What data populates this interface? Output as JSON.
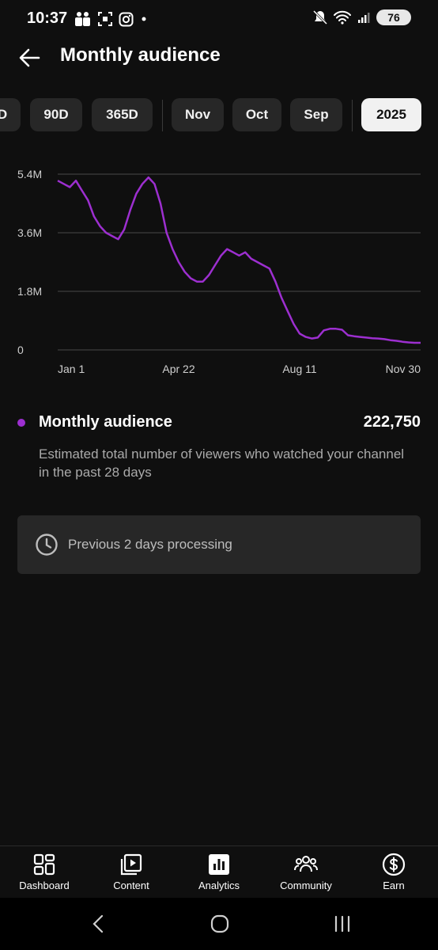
{
  "status_bar": {
    "time": "10:37",
    "left_icons": [
      "teams-icon",
      "screenshot-icon",
      "instagram-icon",
      "dot-icon"
    ],
    "right_icons": [
      "mute-icon",
      "wifi-icon",
      "signal-icon"
    ],
    "battery": "76"
  },
  "header": {
    "title": "Monthly audience",
    "back_icon": "arrow-left-icon"
  },
  "periods": {
    "items": [
      {
        "label": "D"
      },
      {
        "label": "90D"
      },
      {
        "label": "365D"
      },
      {
        "label": "Nov"
      },
      {
        "label": "Oct"
      },
      {
        "label": "Sep"
      },
      {
        "label": "2025"
      }
    ],
    "selected": "2025"
  },
  "chart_data": {
    "type": "line",
    "title": "",
    "xlabel": "",
    "ylabel": "",
    "x_tick_labels": [
      "Jan 1",
      "Apr 22",
      "Aug 11",
      "Nov 30"
    ],
    "y_tick_labels": [
      "5.4M",
      "3.6M",
      "1.8M",
      "0"
    ],
    "ylim": [
      0,
      5.4
    ],
    "y_unit": "M",
    "grid": "horizontal",
    "color": "#9d2fd0",
    "series": [
      {
        "values": [
          5.2,
          5.1,
          5.0,
          5.2,
          4.9,
          4.6,
          4.1,
          3.8,
          3.6,
          3.5,
          3.4,
          3.7,
          4.3,
          4.8,
          5.1,
          5.3,
          5.1,
          4.5,
          3.6,
          3.1,
          2.7,
          2.4,
          2.2,
          2.1,
          2.1,
          2.3,
          2.6,
          2.9,
          3.1,
          3.0,
          2.9,
          3.0,
          2.8,
          2.7,
          2.6,
          2.5,
          2.1,
          1.6,
          1.2,
          0.8,
          0.5,
          0.4,
          0.35,
          0.38,
          0.6,
          0.65,
          0.65,
          0.62,
          0.45,
          0.42,
          0.4,
          0.38,
          0.36,
          0.35,
          0.33,
          0.3,
          0.28,
          0.25,
          0.23,
          0.22,
          0.22
        ]
      }
    ]
  },
  "metric": {
    "name": "Monthly audience",
    "value": "222,750",
    "description": "Estimated total number of viewers who watched your channel in the past 28 days",
    "color": "#9d2fd0"
  },
  "notice": {
    "icon": "clock-icon",
    "text": "Previous 2 days processing"
  },
  "bottom_nav": {
    "items": [
      {
        "label": "Dashboard",
        "icon": "dashboard-icon"
      },
      {
        "label": "Content",
        "icon": "content-icon"
      },
      {
        "label": "Analytics",
        "icon": "analytics-icon",
        "active": true
      },
      {
        "label": "Community",
        "icon": "community-icon"
      },
      {
        "label": "Earn",
        "icon": "earn-icon"
      }
    ]
  },
  "system_nav": [
    "back-icon",
    "home-icon",
    "recents-icon"
  ]
}
